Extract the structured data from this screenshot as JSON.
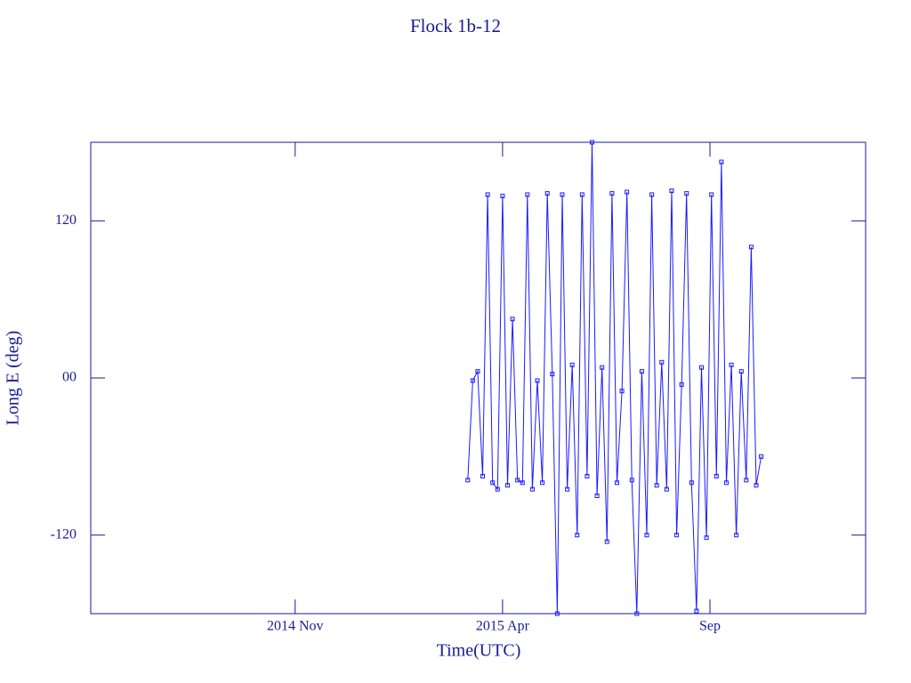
{
  "chart_data": {
    "type": "line",
    "title": "Flock 1b-12",
    "x_label": "Time(UTC)",
    "y_label": "Long E (deg)",
    "color": "#1a1aff",
    "markers": true,
    "x": [
      2015.18,
      2015.19,
      2015.2,
      2015.21,
      2015.22,
      2015.23,
      2015.24,
      2015.25,
      2015.26,
      2015.27,
      2015.28,
      2015.29,
      2015.3,
      2015.31,
      2015.32,
      2015.33,
      2015.34,
      2015.35,
      2015.36,
      2015.37,
      2015.38,
      2015.39,
      2015.4,
      2015.41,
      2015.42,
      2015.43,
      2015.44,
      2015.45,
      2015.46,
      2015.47,
      2015.48,
      2015.49,
      2015.5,
      2015.51,
      2015.52,
      2015.53,
      2015.54,
      2015.55,
      2015.56,
      2015.57,
      2015.58,
      2015.59,
      2015.6,
      2015.61,
      2015.62,
      2015.63,
      2015.64,
      2015.65,
      2015.66,
      2015.67,
      2015.68,
      2015.69,
      2015.7,
      2015.71,
      2015.72,
      2015.73,
      2015.74,
      2015.75,
      2015.76,
      2015.77
    ],
    "values": [
      -78,
      -2,
      5,
      -75,
      140,
      -80,
      -85,
      139,
      -82,
      45,
      -78,
      -80,
      140,
      -85,
      -2,
      -80,
      141,
      3,
      -180,
      140,
      -85,
      10,
      -120,
      140,
      -75,
      180,
      -90,
      8,
      -125,
      141,
      -80,
      -10,
      142,
      -78,
      -180,
      5,
      -120,
      140,
      -82,
      12,
      -85,
      143,
      -120,
      -5,
      141,
      -80,
      -178,
      8,
      -122,
      140,
      -75,
      165,
      -80,
      10,
      -120,
      5,
      -78,
      100,
      -82,
      -60
    ],
    "xlim": [
      2014.422,
      2015.98
    ],
    "xticks": [
      {
        "value": 2014.833,
        "label": "2014 Nov"
      },
      {
        "value": 2015.25,
        "label": "2015 Apr"
      },
      {
        "value": 2015.667,
        "label": "Sep"
      }
    ],
    "ylim": [
      -180,
      180
    ],
    "yticks": [
      -120,
      {
        "value": 0,
        "label": "00"
      },
      120
    ]
  }
}
